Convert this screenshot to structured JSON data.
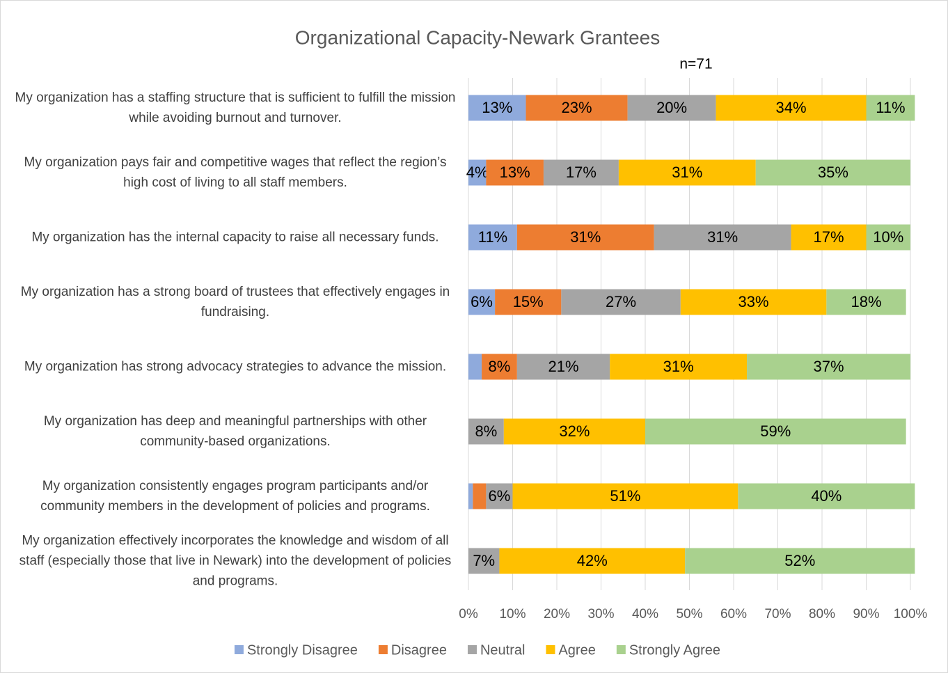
{
  "chart_data": {
    "type": "stacked_bar_horizontal_percent",
    "title": "Organizational Capacity-Newark Grantees",
    "subtitle": "n=71",
    "categories": [
      "My organization has a staffing structure that is sufficient to fulfill the mission while avoiding burnout and turnover.",
      "My organization pays fair and competitive wages that reflect the region’s high cost of living to all staff members.",
      "My organization has the internal capacity to raise all necessary funds.",
      "My organization has a strong board of trustees that effectively engages in fundraising.",
      "My organization has strong advocacy strategies to advance the mission.",
      "My organization has deep and meaningful partnerships with other community-based organizations.",
      "My organization consistently engages program participants and/or community members in the development of policies and programs.",
      "My organization effectively incorporates the knowledge and wisdom of all staff (especially those that live in Newark) into the development of policies and programs."
    ],
    "series": [
      {
        "name": "Strongly Disagree",
        "color": "#8faadc",
        "values": [
          13,
          4,
          11,
          6,
          3,
          0,
          1,
          0
        ],
        "value_labels": [
          "13%",
          "4%",
          "11%",
          "6%",
          null,
          null,
          null,
          null
        ]
      },
      {
        "name": "Disagree",
        "color": "#ed7d31",
        "values": [
          23,
          13,
          31,
          15,
          8,
          0,
          3,
          0
        ],
        "value_labels": [
          "23%",
          "13%",
          "31%",
          "15%",
          "8%",
          null,
          null,
          null
        ]
      },
      {
        "name": "Neutral",
        "color": "#a5a5a5",
        "values": [
          20,
          17,
          31,
          27,
          21,
          8,
          6,
          7
        ],
        "value_labels": [
          "20%",
          "17%",
          "31%",
          "27%",
          "21%",
          "8%",
          "6%",
          "7%"
        ]
      },
      {
        "name": "Agree",
        "color": "#ffc000",
        "values": [
          34,
          31,
          17,
          33,
          31,
          32,
          51,
          42
        ],
        "value_labels": [
          "34%",
          "31%",
          "17%",
          "33%",
          "31%",
          "32%",
          "51%",
          "42%"
        ]
      },
      {
        "name": "Strongly Agree",
        "color": "#a9d18e",
        "values": [
          11,
          35,
          10,
          18,
          37,
          59,
          40,
          52
        ],
        "value_labels": [
          "11%",
          "35%",
          "10%",
          "18%",
          "37%",
          "59%",
          "40%",
          "52%"
        ]
      }
    ],
    "xlim": [
      0,
      100
    ],
    "xticks": [
      {
        "value": 0,
        "label": "0%"
      },
      {
        "value": 10,
        "label": "10%"
      },
      {
        "value": 20,
        "label": "20%"
      },
      {
        "value": 30,
        "label": "30%"
      },
      {
        "value": 40,
        "label": "40%"
      },
      {
        "value": 50,
        "label": "50%"
      },
      {
        "value": 60,
        "label": "60%"
      },
      {
        "value": 70,
        "label": "70%"
      },
      {
        "value": 80,
        "label": "80%"
      },
      {
        "value": 90,
        "label": "90%"
      },
      {
        "value": 100,
        "label": "100%"
      }
    ],
    "grid": true,
    "legend": "bottom"
  }
}
